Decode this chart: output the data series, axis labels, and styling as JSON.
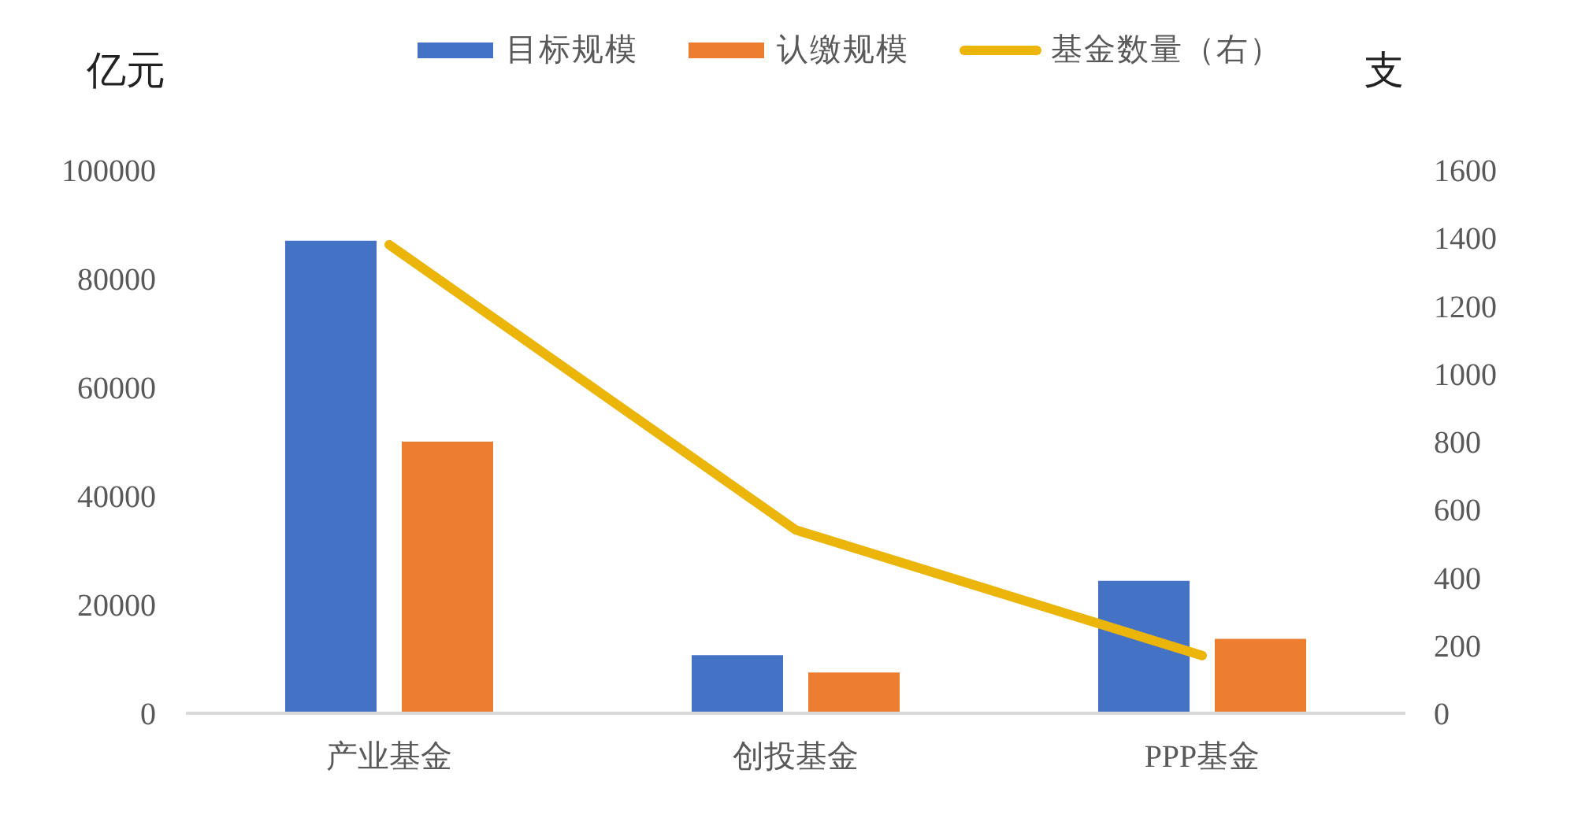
{
  "chart_data": {
    "type": "bar",
    "ylabel": "亿元",
    "y2label": "支",
    "categories": [
      "产业基金",
      "创投基金",
      "PPP基金"
    ],
    "series": [
      {
        "name": "目标规模",
        "color": "#4472c4",
        "values": [
          87000,
          10700,
          24400
        ]
      },
      {
        "name": "认缴规模",
        "color": "#ed7d31",
        "values": [
          50000,
          7500,
          13700
        ]
      },
      {
        "name": "基金数量（右）",
        "type": "line",
        "axis": "y2",
        "color": "#ebb50a",
        "values": [
          1380,
          540,
          170
        ]
      }
    ],
    "ylim": [
      0,
      100000
    ],
    "yticks": [
      0,
      20000,
      40000,
      60000,
      80000,
      100000
    ],
    "y2lim": [
      0,
      1600
    ],
    "y2ticks": [
      0,
      200,
      400,
      600,
      800,
      1000,
      1200,
      1400,
      1600
    ],
    "legend": "top",
    "marker": "none"
  }
}
